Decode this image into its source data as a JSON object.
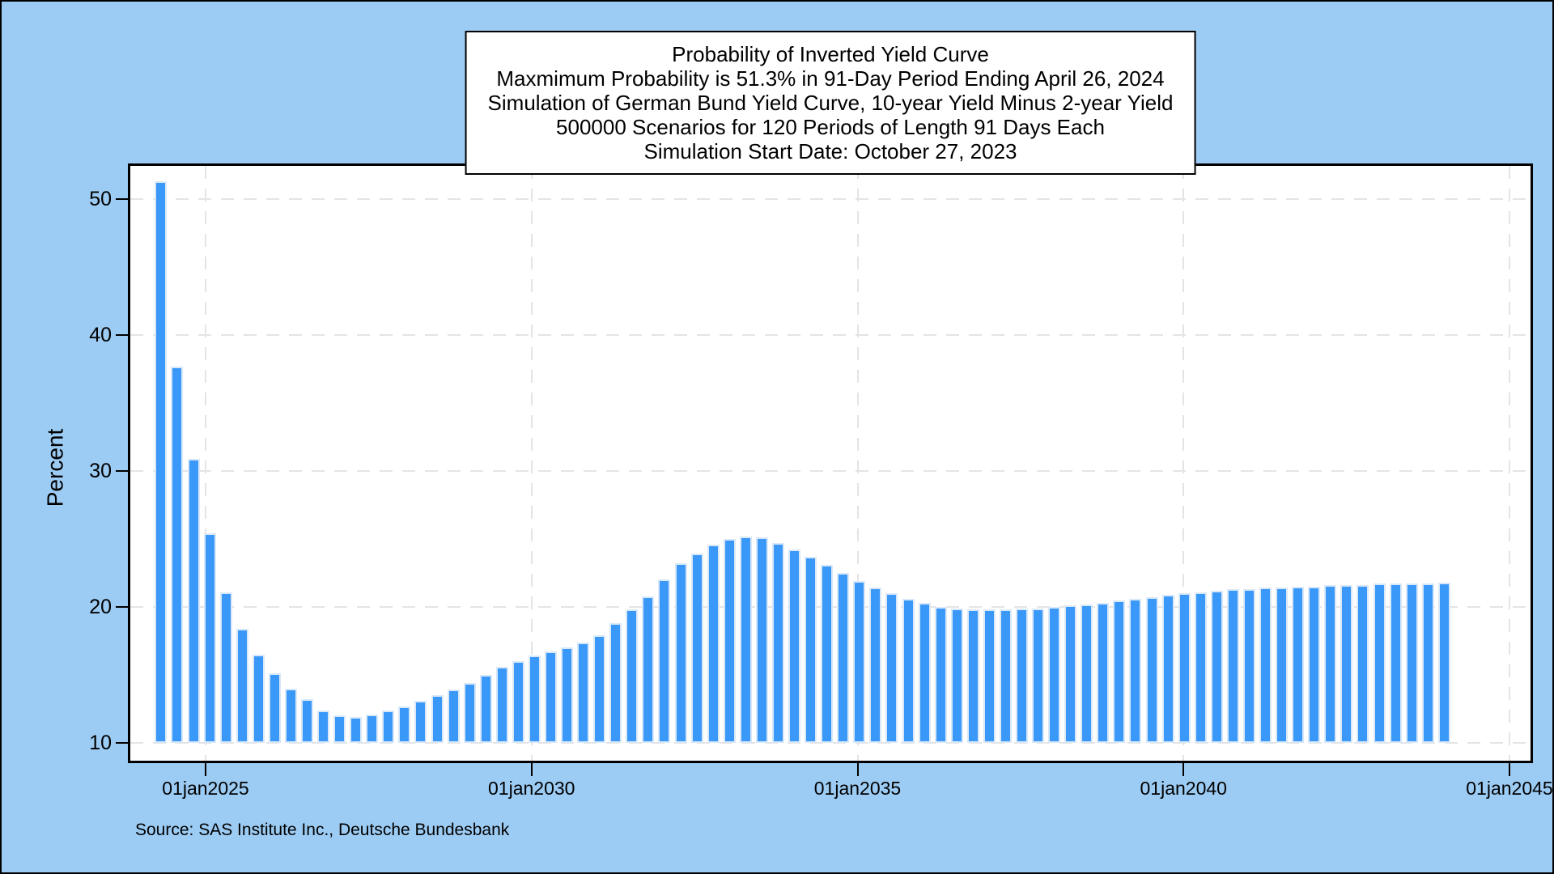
{
  "chart_data": {
    "type": "bar",
    "title_lines": [
      "Probability of Inverted Yield Curve",
      "Maxmimum Probability is 51.3% in 91-Day Period Ending April 26, 2024",
      "Simulation of German Bund Yield Curve, 10-year Yield Minus 2-year Yield",
      "500000 Scenarios for 120 Periods of Length 91 Days Each",
      "Simulation Start Date: October 27, 2023"
    ],
    "ylabel": "Percent",
    "xlabel": "",
    "y_ticks": [
      10,
      20,
      30,
      40,
      50
    ],
    "ylim": [
      8.3,
      52.6
    ],
    "x_ticks": [
      {
        "label": "01jan2025",
        "year": 2025
      },
      {
        "label": "01jan2030",
        "year": 2030
      },
      {
        "label": "01jan2035",
        "year": 2035
      },
      {
        "label": "01jan2040",
        "year": 2040
      },
      {
        "label": "01jan2045",
        "year": 2045
      }
    ],
    "xlim_years": [
      2023.81,
      2045.36
    ],
    "grid": true,
    "legend": "none",
    "bar_baseline_value": 10,
    "series_name": "Probability of inverted yield curve (percent), 91-day periods",
    "period_end_dates": [
      "2024-04-26",
      "2024-07-26",
      "2024-10-25",
      "2025-01-24",
      "2025-04-25",
      "2025-07-25",
      "2025-10-24",
      "2026-01-23",
      "2026-04-24",
      "2026-07-24",
      "2026-10-23",
      "2027-01-22",
      "2027-04-23",
      "2027-07-23",
      "2027-10-22",
      "2028-01-21",
      "2028-04-21",
      "2028-07-21",
      "2028-10-20",
      "2029-01-19",
      "2029-04-20",
      "2029-07-20",
      "2029-10-19",
      "2030-01-18",
      "2030-04-19",
      "2030-07-19",
      "2030-10-18",
      "2031-01-17",
      "2031-04-18",
      "2031-07-18",
      "2031-10-17",
      "2032-01-16",
      "2032-04-16",
      "2032-07-16",
      "2032-10-15",
      "2033-01-14",
      "2033-04-15",
      "2033-07-15",
      "2033-10-14",
      "2034-01-13",
      "2034-04-14",
      "2034-07-14",
      "2034-10-13",
      "2035-01-12",
      "2035-04-13",
      "2035-07-13",
      "2035-10-12",
      "2036-01-11",
      "2036-04-11",
      "2036-07-11",
      "2036-10-10",
      "2037-01-09",
      "2037-04-10",
      "2037-07-10",
      "2037-10-09",
      "2038-01-08",
      "2038-04-09",
      "2038-07-09",
      "2038-10-08",
      "2039-01-07",
      "2039-04-08",
      "2039-07-08",
      "2039-10-07",
      "2040-01-06",
      "2040-04-06",
      "2040-07-06",
      "2040-10-05",
      "2041-01-04",
      "2041-04-05",
      "2041-07-05",
      "2041-10-04",
      "2042-01-03",
      "2042-04-04",
      "2042-07-04",
      "2042-10-03",
      "2043-01-02",
      "2043-04-03",
      "2043-07-03",
      "2043-10-02",
      "2044-01-01"
    ],
    "values": [
      51.3,
      37.7,
      30.9,
      25.4,
      21.1,
      18.4,
      16.5,
      15.1,
      14.0,
      13.2,
      12.4,
      12.0,
      11.9,
      12.1,
      12.4,
      12.7,
      13.1,
      13.5,
      13.9,
      14.4,
      15.0,
      15.6,
      16.0,
      16.4,
      16.7,
      17.0,
      17.4,
      17.9,
      18.8,
      19.8,
      20.8,
      22.0,
      23.2,
      23.9,
      24.6,
      25.0,
      25.2,
      25.1,
      24.7,
      24.2,
      23.7,
      23.1,
      22.5,
      21.9,
      21.4,
      21.0,
      20.6,
      20.3,
      20.0,
      19.9,
      19.8,
      19.8,
      19.8,
      19.9,
      19.9,
      20.0,
      20.1,
      20.2,
      20.3,
      20.5,
      20.6,
      20.7,
      20.9,
      21.0,
      21.1,
      21.2,
      21.3,
      21.3,
      21.4,
      21.4,
      21.5,
      21.5,
      21.6,
      21.6,
      21.6,
      21.7,
      21.7,
      21.7,
      21.7,
      21.8
    ],
    "max_annotation": {
      "value_pct": 51.3,
      "period_end": "April 26, 2024"
    }
  },
  "source_note": "Source: SAS Institute Inc., Deutsche Bundesbank",
  "colors": {
    "page_background": "#9ccbf3",
    "plot_background": "#ffffff",
    "bar_fill": "#3a98f8",
    "bar_border": "#d8e8f9",
    "gridline": "#e4e4e4",
    "axis": "#000000",
    "title_box_background": "#ffffff"
  }
}
